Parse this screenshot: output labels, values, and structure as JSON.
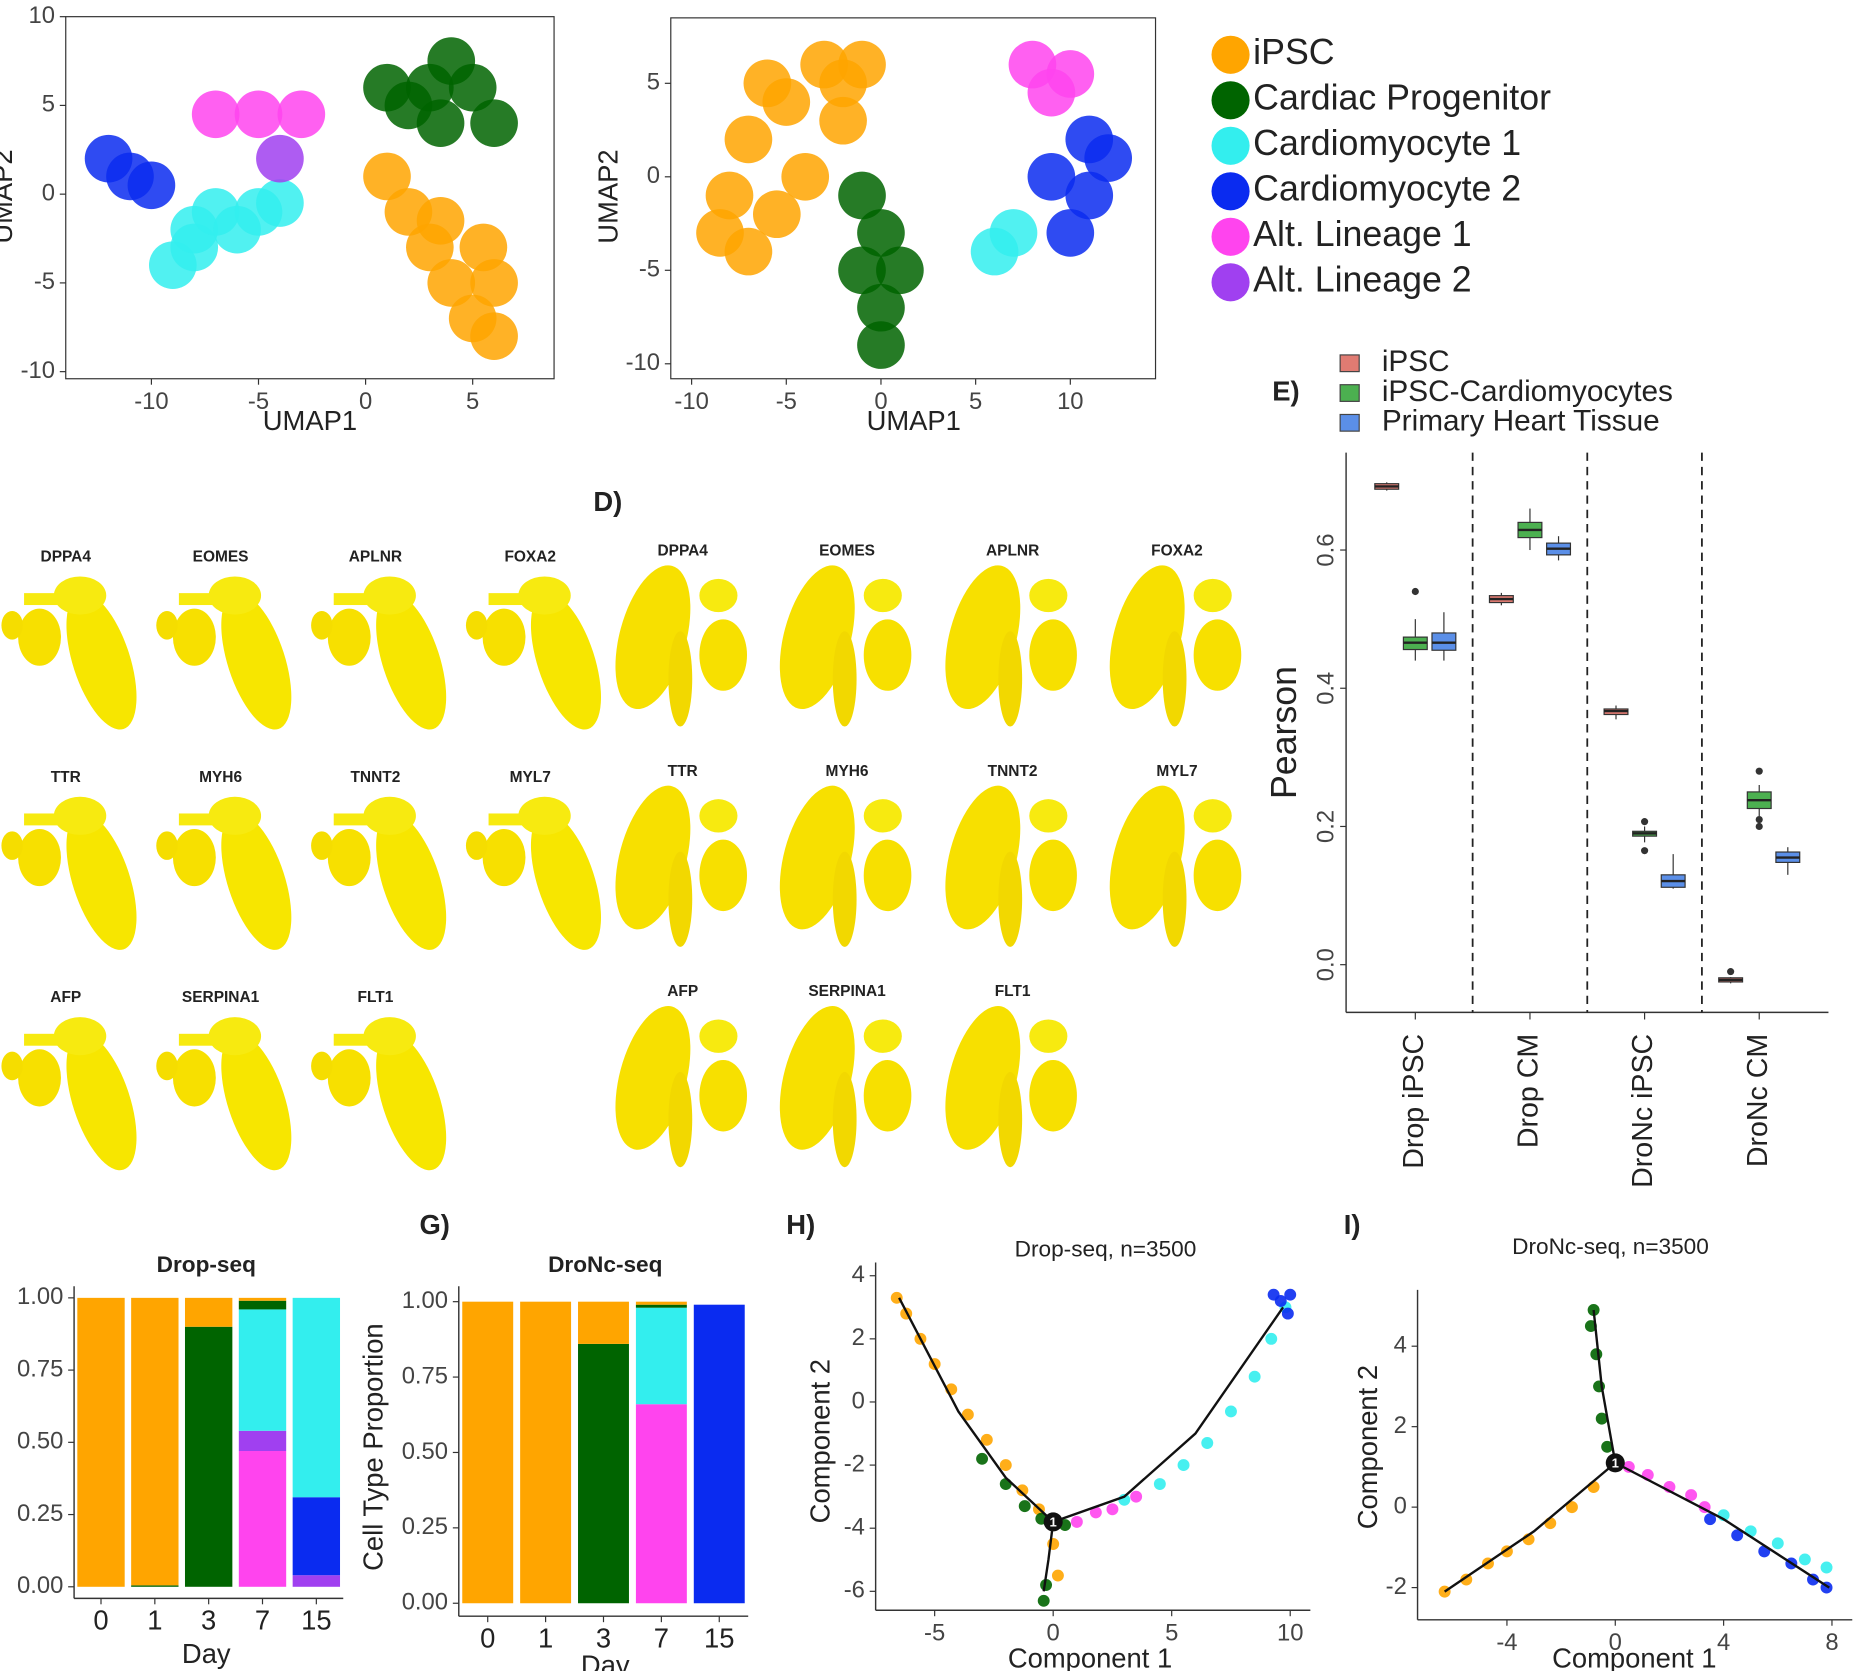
{
  "chart_data": [
    {
      "type": "scatter",
      "xlabel": "UMAP1",
      "ylabel": "UMAP2",
      "xlim": [
        -14,
        8.8
      ],
      "ylim": [
        -10.4,
        10
      ],
      "xticks": [
        -10,
        -5,
        0,
        5
      ],
      "yticks": [
        -10,
        -5,
        0,
        5,
        10
      ],
      "series": [
        {
          "name": "iPSC",
          "color": "#ffa500",
          "x": [
            1,
            2,
            3,
            4,
            5,
            6,
            6,
            5.5,
            3.5
          ],
          "y": [
            1,
            -1,
            -3,
            -5,
            -7,
            -8,
            -5,
            -3,
            -1.5
          ]
        },
        {
          "name": "Cardiac Progenitor",
          "color": "#006400",
          "x": [
            1,
            2,
            3,
            4,
            5,
            6,
            3.5
          ],
          "y": [
            6,
            5,
            6,
            7.5,
            6,
            4,
            4
          ]
        },
        {
          "name": "Cardiomyocyte 1",
          "color": "#33eeee",
          "x": [
            -9,
            -8,
            -8,
            -7,
            -6,
            -5,
            -4
          ],
          "y": [
            -4,
            -3,
            -2,
            -1,
            -2,
            -1,
            -0.5
          ]
        },
        {
          "name": "Cardiomyocyte 2",
          "color": "#0a2bf0",
          "x": [
            -12,
            -11,
            -10
          ],
          "y": [
            2,
            1,
            0.5
          ]
        },
        {
          "name": "Alt. Lineage 1",
          "color": "#ff44ee",
          "x": [
            -7,
            -5,
            -3
          ],
          "y": [
            4.5,
            4.5,
            4.5
          ]
        },
        {
          "name": "Alt. Lineage 2",
          "color": "#a040f0",
          "x": [
            -4
          ],
          "y": [
            2
          ]
        }
      ]
    },
    {
      "type": "scatter",
      "xlabel": "UMAP1",
      "ylabel": "UMAP2",
      "xlim": [
        -11.1,
        14.5
      ],
      "ylim": [
        -10.8,
        8.5
      ],
      "xticks": [
        -10,
        -5,
        0,
        5,
        10
      ],
      "yticks": [
        -10,
        -5,
        0,
        5
      ],
      "series": [
        {
          "color": "#ffa500",
          "x": [
            -7,
            -5,
            -3,
            -1,
            -8,
            -7,
            -4,
            -2,
            -6,
            -8.5,
            -5.5,
            -2
          ],
          "y": [
            2,
            4,
            6,
            6,
            -1,
            -4,
            0,
            3,
            5,
            -3,
            -2,
            5
          ]
        },
        {
          "color": "#006400",
          "x": [
            0,
            -1,
            0,
            -1,
            0,
            1
          ],
          "y": [
            -3,
            -5,
            -7,
            -1,
            -9,
            -5
          ]
        },
        {
          "color": "#33eeee",
          "x": [
            6,
            7
          ],
          "y": [
            -4,
            -3
          ]
        },
        {
          "color": "#0a2bf0",
          "x": [
            9,
            11,
            12,
            10,
            11
          ],
          "y": [
            0,
            -1,
            1,
            -3,
            2
          ]
        },
        {
          "color": "#ff44ee",
          "x": [
            8,
            10,
            9
          ],
          "y": [
            6,
            5.5,
            4.5
          ]
        }
      ]
    },
    {
      "type": "box",
      "panel_label": "E)",
      "ylabel": "Pearson",
      "categories": [
        "Drop iPSC",
        "Drop CM",
        "DroNc iPSC",
        "DroNc CM"
      ],
      "ylim": [
        -0.069,
        0.741
      ],
      "yticks": [
        {
          "value": 0,
          "label": "0.0"
        },
        0.2,
        0.4,
        0.6
      ],
      "series": [
        {
          "name": "iPSC",
          "color": "#e07b72",
          "median": [
            0.692,
            0.529,
            0.367,
            -0.022
          ],
          "q1": [
            0.688,
            0.524,
            0.362,
            -0.025
          ],
          "q3": [
            0.696,
            0.534,
            0.37,
            -0.019
          ],
          "whisker_low": [
            0.686,
            0.52,
            0.355,
            -0.027
          ],
          "whisker_high": [
            0.698,
            0.538,
            0.375,
            -0.018
          ],
          "outliers": [
            [],
            [],
            [],
            [
              -0.01
            ]
          ]
        },
        {
          "name": "iPSC-Cardiomyocytes",
          "color": "#4cb050",
          "median": [
            0.466,
            0.629,
            0.19,
            0.238
          ],
          "q1": [
            0.456,
            0.618,
            0.186,
            0.226
          ],
          "q3": [
            0.474,
            0.64,
            0.193,
            0.25
          ],
          "whisker_low": [
            0.44,
            0.6,
            0.177,
            0.215
          ],
          "whisker_high": [
            0.5,
            0.66,
            0.2,
            0.26
          ],
          "outliers": [
            [
              0.54
            ],
            [],
            [
              0.207,
              0.165
            ],
            [
              0.28,
              0.21,
              0.2
            ]
          ]
        },
        {
          "name": "Primary Heart Tissue",
          "color": "#5b8fe8",
          "median": [
            0.466,
            0.602,
            0.121,
            0.155
          ],
          "q1": [
            0.455,
            0.593,
            0.112,
            0.148
          ],
          "q3": [
            0.48,
            0.61,
            0.13,
            0.163
          ],
          "whisker_low": [
            0.44,
            0.585,
            0.11,
            0.13
          ],
          "whisker_high": [
            0.51,
            0.62,
            0.16,
            0.17
          ],
          "outliers": [
            [],
            [],
            [],
            []
          ]
        }
      ]
    },
    {
      "type": "stacked_bar",
      "title": "Drop-seq",
      "xlabel": "Day",
      "categories": [
        "0",
        "1",
        "3",
        "7",
        "15"
      ],
      "ylim": [
        -0.04,
        1.04
      ],
      "yticks": [
        {
          "value": 0,
          "label": "0.00"
        },
        0.25,
        {
          "value": 0.5,
          "label": "0.50"
        },
        0.75,
        {
          "value": 1,
          "label": "1.00"
        }
      ],
      "series": [
        {
          "color": "#ff44ee",
          "values": [
            0,
            0,
            0,
            0.47,
            0
          ]
        },
        {
          "color": "#a040f0",
          "values": [
            0,
            0,
            0,
            0.07,
            0.04
          ]
        },
        {
          "color": "#0a2bf0",
          "values": [
            0,
            0,
            0,
            0,
            0.27
          ]
        },
        {
          "color": "#33eeee",
          "values": [
            0,
            0,
            0,
            0.42,
            0.69
          ]
        },
        {
          "color": "#006400",
          "values": [
            0,
            0.005,
            0.9,
            0.03,
            0
          ]
        },
        {
          "color": "#ffa500",
          "values": [
            1,
            0.995,
            0.1,
            0.01,
            0
          ]
        }
      ]
    },
    {
      "type": "stacked_bar",
      "panel_label": "G)",
      "title": "DroNc-seq",
      "xlabel": "Day",
      "ylabel": "Cell Type Proportion",
      "categories": [
        "0",
        "1",
        "3",
        "7",
        "15"
      ],
      "ylim": [
        -0.043,
        1.051
      ],
      "yticks": [
        {
          "value": 0,
          "label": "0.00"
        },
        0.25,
        {
          "value": 0.5,
          "label": "0.50"
        },
        0.75,
        {
          "value": 1,
          "label": "1.00"
        }
      ],
      "series": [
        {
          "color": "#ff44ee",
          "values": [
            0,
            0,
            0,
            0.66,
            0
          ]
        },
        {
          "color": "#0a2bf0",
          "values": [
            0,
            0,
            0,
            0,
            0.99
          ]
        },
        {
          "color": "#33eeee",
          "values": [
            0,
            0,
            0,
            0.32,
            0
          ]
        },
        {
          "color": "#006400",
          "values": [
            0,
            0,
            0.86,
            0.01,
            0
          ]
        },
        {
          "color": "#ffa500",
          "values": [
            1,
            1,
            0.14,
            0.01,
            0
          ]
        }
      ]
    },
    {
      "type": "scatter",
      "panel_label": "H)",
      "title": "Drop-seq, n=3500",
      "xlabel": "Component 1",
      "ylabel": "Component 2",
      "xlim": [
        -7.49,
        10.85
      ],
      "ylim": [
        -6.6,
        4.42
      ],
      "xticks": [
        -5,
        0,
        5,
        10
      ],
      "yticks": [
        -6,
        -4,
        -2,
        0,
        2,
        4
      ],
      "series": [
        {
          "color": "#ffa500",
          "x": [
            -6.6,
            -6.2,
            -5.6,
            -5,
            -4.3,
            -3.6,
            -2.8,
            -2,
            -1.3,
            -0.6,
            0,
            0.2
          ],
          "y": [
            3.3,
            2.8,
            2,
            1.2,
            0.4,
            -0.4,
            -1.2,
            -2,
            -2.8,
            -3.4,
            -4.5,
            -5.5
          ]
        },
        {
          "color": "#006400",
          "x": [
            -3,
            -2,
            -1.2,
            -0.5,
            -0.3,
            -0.4,
            0.5
          ],
          "y": [
            -1.8,
            -2.6,
            -3.3,
            -3.7,
            -5.8,
            -6.3,
            -3.9
          ]
        },
        {
          "color": "#33eeee",
          "x": [
            3,
            4.5,
            5.5,
            6.5,
            7.5,
            8.5,
            9.2,
            9.8
          ],
          "y": [
            -3.1,
            -2.6,
            -2,
            -1.3,
            -0.3,
            0.8,
            2,
            3
          ]
        },
        {
          "color": "#0a2bf0",
          "x": [
            9.6,
            9.9,
            10,
            9.3
          ],
          "y": [
            3.2,
            2.8,
            3.4,
            3.4
          ]
        },
        {
          "color": "#ff44ee",
          "x": [
            1,
            1.8,
            2.5,
            3.5
          ],
          "y": [
            -3.8,
            -3.5,
            -3.4,
            -3
          ]
        }
      ],
      "trajectory": [
        {
          "x": [
            0,
            -2,
            -4,
            -6.5
          ],
          "y": [
            -3.8,
            -2.4,
            -0.3,
            3.3
          ]
        },
        {
          "x": [
            0,
            -0.2,
            -0.4
          ],
          "y": [
            -3.8,
            -5,
            -6
          ]
        },
        {
          "x": [
            0,
            3,
            6,
            9.7
          ],
          "y": [
            -3.8,
            -3,
            -1,
            3
          ]
        }
      ],
      "branch_point": {
        "x": 0,
        "y": -3.8,
        "label": "1"
      }
    },
    {
      "type": "scatter",
      "panel_label": "I)",
      "title": "DroNc-seq, n=3500",
      "xlabel": "Component 1",
      "ylabel": "Component 2",
      "xlim": [
        -7.3,
        8.75
      ],
      "ylim": [
        -2.8,
        5.4
      ],
      "xticks": [
        -4,
        0,
        4,
        8
      ],
      "yticks": [
        -2,
        0,
        2,
        4
      ],
      "series": [
        {
          "color": "#006400",
          "x": [
            -0.8,
            -0.9,
            -0.7,
            -0.6,
            -0.5,
            -0.3
          ],
          "y": [
            4.9,
            4.5,
            3.8,
            3,
            2.2,
            1.5
          ]
        },
        {
          "color": "#ffa500",
          "x": [
            -6.3,
            -5.5,
            -4.7,
            -4,
            -3.2,
            -2.4,
            -1.6,
            -0.8
          ],
          "y": [
            -2.1,
            -1.8,
            -1.4,
            -1.1,
            -0.8,
            -0.4,
            0,
            0.5
          ]
        },
        {
          "color": "#ff44ee",
          "x": [
            0.5,
            1.2,
            2,
            2.8,
            3.3
          ],
          "y": [
            1,
            0.8,
            0.5,
            0.3,
            0
          ]
        },
        {
          "color": "#33eeee",
          "x": [
            4,
            5,
            6,
            7,
            7.8
          ],
          "y": [
            -0.2,
            -0.6,
            -0.9,
            -1.3,
            -1.5
          ]
        },
        {
          "color": "#0a2bf0",
          "x": [
            3.5,
            4.5,
            5.5,
            6.5,
            7.3,
            7.8
          ],
          "y": [
            -0.3,
            -0.7,
            -1.1,
            -1.4,
            -1.8,
            -2
          ]
        }
      ],
      "trajectory": [
        {
          "x": [
            0,
            -0.5,
            -0.8
          ],
          "y": [
            1.1,
            3,
            4.9
          ]
        },
        {
          "x": [
            0,
            -3,
            -6.3
          ],
          "y": [
            1.1,
            -0.6,
            -2.1
          ]
        },
        {
          "x": [
            0,
            4,
            7.9
          ],
          "y": [
            1.1,
            -0.3,
            -2
          ]
        }
      ],
      "branch_point": {
        "x": 0,
        "y": 1.1,
        "label": "1"
      }
    }
  ],
  "feature_plots": [
    {
      "genes": [
        "DPPA4",
        "EOMES",
        "APLNR",
        "FOXA2",
        "TTR",
        "MYH6",
        "TNNT2",
        "MYL7",
        "AFP",
        "SERPINA1",
        "FLT1"
      ]
    },
    {
      "label": "D)",
      "genes": [
        "DPPA4",
        "EOMES",
        "APLNR",
        "FOXA2",
        "TTR",
        "MYH6",
        "TNNT2",
        "MYL7",
        "AFP",
        "SERPINA1",
        "FLT1"
      ]
    }
  ]
}
